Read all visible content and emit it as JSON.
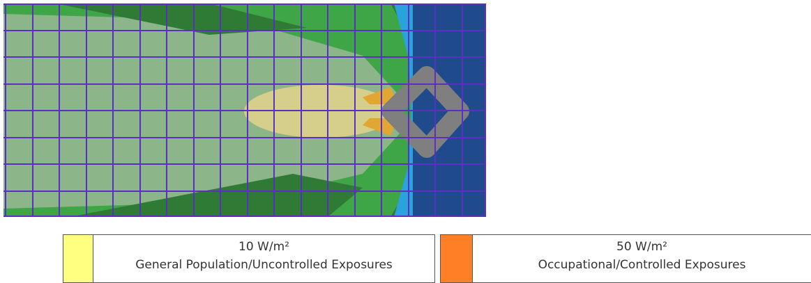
{
  "legend": {
    "items": [
      {
        "value_label": "10 W/m²",
        "description": "General Population/Uncontrolled Exposures",
        "color": "#ffff80"
      },
      {
        "value_label": "50 W/m²",
        "description": "Occupational/Controlled Exposures",
        "color": "#ff7f27"
      }
    ]
  }
}
